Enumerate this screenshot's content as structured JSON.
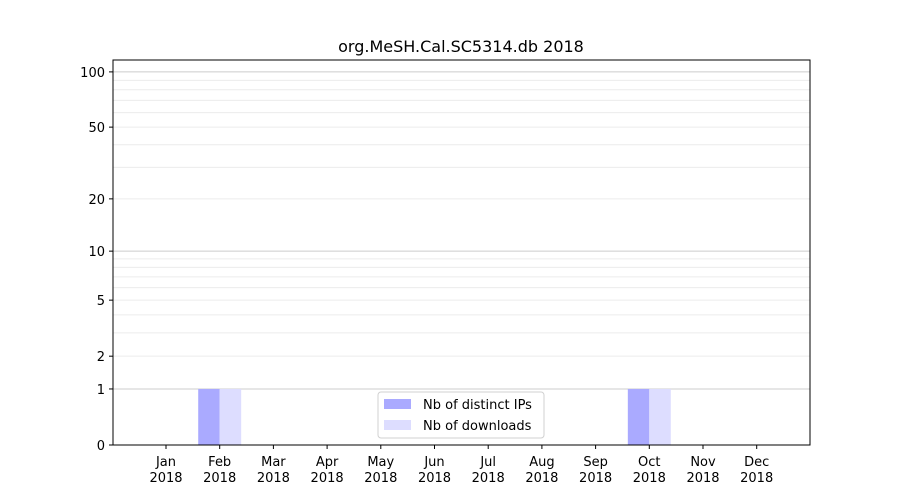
{
  "chart_data": {
    "type": "bar",
    "title": "org.MeSH.Cal.SC5314.db 2018",
    "xlabel": "",
    "ylabel": "",
    "yscale": "log(1+y)",
    "ylim": [
      0,
      116
    ],
    "yticks": [
      0,
      1,
      2,
      5,
      10,
      20,
      50,
      100
    ],
    "ytick_labels": [
      "0",
      "1",
      "2",
      "5",
      "10",
      "20",
      "50",
      "100"
    ],
    "grid": true,
    "legend_placement": "lower center",
    "categories": [
      [
        "Jan",
        "2018"
      ],
      [
        "Feb",
        "2018"
      ],
      [
        "Mar",
        "2018"
      ],
      [
        "Apr",
        "2018"
      ],
      [
        "May",
        "2018"
      ],
      [
        "Jun",
        "2018"
      ],
      [
        "Jul",
        "2018"
      ],
      [
        "Aug",
        "2018"
      ],
      [
        "Sep",
        "2018"
      ],
      [
        "Oct",
        "2018"
      ],
      [
        "Nov",
        "2018"
      ],
      [
        "Dec",
        "2018"
      ]
    ],
    "series": [
      {
        "name": "Nb of distinct IPs",
        "color": "#aaaaff",
        "values": [
          0,
          1,
          0,
          0,
          0,
          0,
          0,
          0,
          0,
          1,
          0,
          0
        ]
      },
      {
        "name": "Nb of downloads",
        "color": "#ddddff",
        "values": [
          0,
          1,
          0,
          0,
          0,
          0,
          0,
          0,
          0,
          1,
          0,
          0
        ]
      }
    ]
  }
}
